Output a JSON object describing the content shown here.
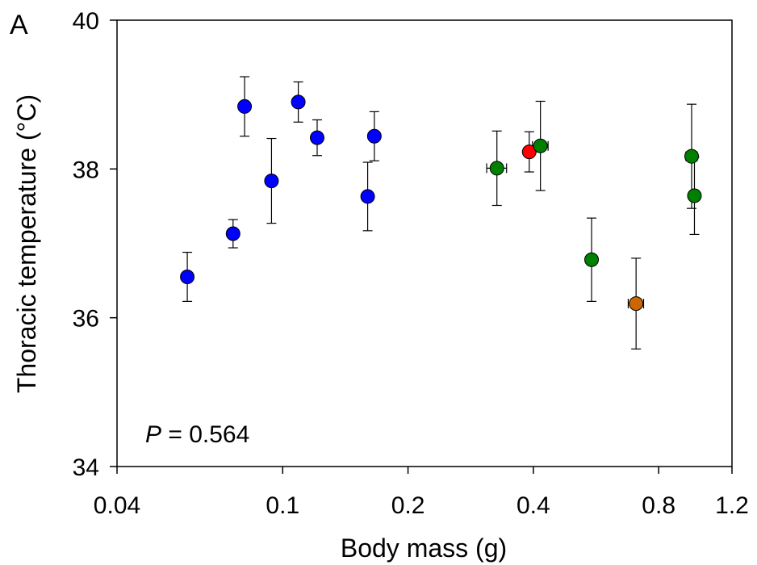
{
  "panel_label": "A",
  "annotation": {
    "italic": "P",
    "rest": " = 0.564"
  },
  "chart_data": {
    "type": "scatter",
    "title": "",
    "xlabel": "Body mass (g)",
    "ylabel": "Thoracic temperature (°C)",
    "x_scale": "log",
    "xlim": [
      0.04,
      1.2
    ],
    "ylim": [
      34,
      40
    ],
    "x_ticks": [
      {
        "value": 0.04,
        "label": "0.04"
      },
      {
        "value": 0.1,
        "label": "0.1"
      },
      {
        "value": 0.2,
        "label": "0.2"
      },
      {
        "value": 0.4,
        "label": "0.4"
      },
      {
        "value": 0.8,
        "label": "0.8"
      },
      {
        "value": 1.2,
        "label": "1.2"
      }
    ],
    "y_ticks": [
      {
        "value": 34,
        "label": "34"
      },
      {
        "value": 36,
        "label": "36"
      },
      {
        "value": 38,
        "label": "38"
      },
      {
        "value": 40,
        "label": "40"
      }
    ],
    "grid": false,
    "legend": "none",
    "points": [
      {
        "x": 0.059,
        "y": 36.55,
        "y_err": 0.33,
        "x_err": 0,
        "color": "#0000ff"
      },
      {
        "x": 0.076,
        "y": 37.13,
        "y_err": 0.19,
        "x_err": 0,
        "color": "#0000ff"
      },
      {
        "x": 0.081,
        "y": 38.84,
        "y_err": 0.4,
        "x_err": 0,
        "color": "#0000ff"
      },
      {
        "x": 0.094,
        "y": 37.84,
        "y_err": 0.57,
        "x_err": 0,
        "color": "#0000ff"
      },
      {
        "x": 0.109,
        "y": 38.9,
        "y_err": 0.27,
        "x_err": 0,
        "color": "#0000ff"
      },
      {
        "x": 0.121,
        "y": 38.42,
        "y_err": 0.24,
        "x_err": 0,
        "color": "#0000ff"
      },
      {
        "x": 0.16,
        "y": 37.63,
        "y_err": 0.46,
        "x_err": 0,
        "color": "#0000ff"
      },
      {
        "x": 0.166,
        "y": 38.44,
        "y_err": 0.33,
        "x_err": 0,
        "color": "#0000ff"
      },
      {
        "x": 0.327,
        "y": 38.01,
        "y_err": 0.5,
        "x_err": 0.018,
        "color": "#008000"
      },
      {
        "x": 0.391,
        "y": 38.23,
        "y_err": 0.27,
        "x_err": 0,
        "color": "#ff0000"
      },
      {
        "x": 0.416,
        "y": 38.31,
        "y_err": 0.6,
        "x_err": 0.018,
        "color": "#008000"
      },
      {
        "x": 0.552,
        "y": 36.78,
        "y_err": 0.56,
        "x_err": 0.01,
        "color": "#008000"
      },
      {
        "x": 0.706,
        "y": 36.19,
        "y_err": 0.61,
        "x_err": 0.03,
        "color": "#cc6600"
      },
      {
        "x": 0.96,
        "y": 38.17,
        "y_err": 0.7,
        "x_err": 0.03,
        "color": "#008000"
      },
      {
        "x": 0.975,
        "y": 37.64,
        "y_err": 0.52,
        "x_err": 0,
        "color": "#008000"
      }
    ]
  }
}
